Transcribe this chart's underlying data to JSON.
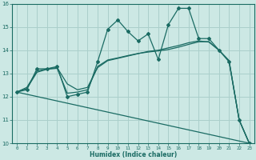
{
  "xlabel": "Humidex (Indice chaleur)",
  "ylabel": "",
  "xlim": [
    -0.5,
    23.5
  ],
  "ylim": [
    10,
    16
  ],
  "yticks": [
    10,
    11,
    12,
    13,
    14,
    15,
    16
  ],
  "xticks": [
    0,
    1,
    2,
    3,
    4,
    5,
    6,
    7,
    8,
    9,
    10,
    11,
    12,
    13,
    14,
    15,
    16,
    17,
    18,
    19,
    20,
    21,
    22,
    23
  ],
  "background_color": "#cce8e4",
  "grid_color": "#aacfcb",
  "line_color": "#1a6b63",
  "line1_x": [
    0,
    1,
    2,
    3,
    4,
    5,
    6,
    7,
    8,
    9,
    10,
    11,
    12,
    13,
    14,
    15,
    16,
    17,
    18,
    19,
    20,
    21,
    22,
    23
  ],
  "line1_y": [
    12.2,
    12.3,
    13.2,
    13.2,
    13.3,
    12.0,
    12.1,
    12.2,
    13.5,
    14.9,
    15.3,
    14.8,
    14.4,
    14.7,
    13.6,
    15.1,
    15.8,
    15.8,
    14.5,
    14.5,
    14.0,
    13.5,
    11.0,
    10.0
  ],
  "line2_x": [
    0,
    1,
    2,
    3,
    4,
    5,
    6,
    7,
    8,
    9,
    10,
    11,
    12,
    13,
    14,
    15,
    16,
    17,
    18,
    19,
    20,
    21,
    22,
    23
  ],
  "line2_y": [
    12.2,
    12.4,
    13.1,
    13.2,
    13.25,
    12.55,
    12.3,
    12.4,
    13.25,
    13.55,
    13.65,
    13.75,
    13.85,
    13.95,
    14.0,
    14.1,
    14.2,
    14.32,
    14.4,
    14.35,
    14.0,
    13.55,
    11.0,
    10.0
  ],
  "line3_x": [
    0,
    23
  ],
  "line3_y": [
    12.2,
    10.0
  ],
  "line4_x": [
    0,
    1,
    2,
    3,
    4,
    5,
    6,
    7,
    8,
    9,
    10,
    11,
    12,
    13,
    14,
    15,
    16,
    17,
    18,
    19,
    20,
    21,
    22,
    23
  ],
  "line4_y": [
    12.2,
    12.35,
    13.05,
    13.18,
    13.22,
    12.15,
    12.2,
    12.3,
    13.3,
    13.58,
    13.67,
    13.77,
    13.86,
    13.92,
    13.97,
    14.03,
    14.13,
    14.25,
    14.36,
    14.37,
    14.0,
    13.55,
    11.0,
    10.0
  ]
}
